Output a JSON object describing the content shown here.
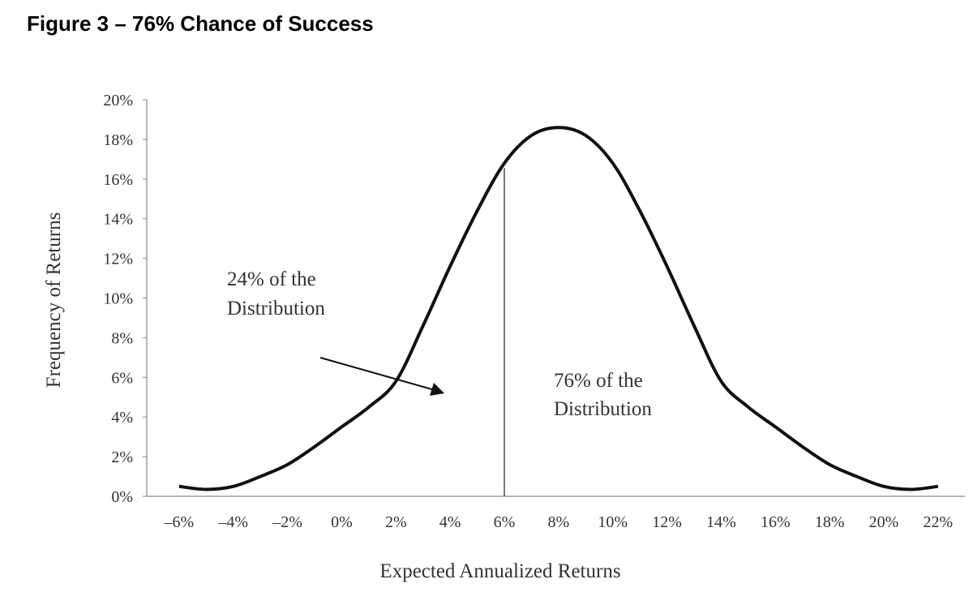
{
  "chart_data": {
    "type": "line",
    "title": "Figure 3 – 76% Chance of Success",
    "xlabel": "Expected Annualized Returns",
    "ylabel": "Frequency of Returns",
    "xlim": [
      -6,
      22
    ],
    "ylim": [
      0,
      20
    ],
    "grid": false,
    "x_ticks": [
      -6,
      -4,
      -2,
      0,
      2,
      4,
      6,
      8,
      10,
      12,
      14,
      16,
      18,
      20,
      22
    ],
    "x_tick_labels": [
      "–6%",
      "–4%",
      "–2%",
      "0%",
      "2%",
      "4%",
      "6%",
      "8%",
      "10%",
      "12%",
      "14%",
      "16%",
      "18%",
      "20%",
      "22%"
    ],
    "y_ticks": [
      0,
      2,
      4,
      6,
      8,
      10,
      12,
      14,
      16,
      18,
      20
    ],
    "y_tick_labels": [
      "0%",
      "2%",
      "4%",
      "6%",
      "8%",
      "10%",
      "12%",
      "14%",
      "16%",
      "18%",
      "20%"
    ],
    "series": [
      {
        "name": "Distribution",
        "x": [
          -6,
          -5,
          -4,
          -3,
          -2,
          -1,
          0,
          1,
          2,
          3,
          4,
          5,
          6,
          7,
          8,
          9,
          10,
          11,
          12,
          13,
          14,
          15,
          16,
          17,
          18,
          19,
          20,
          21,
          22
        ],
        "values": [
          0.5,
          0.35,
          0.5,
          1.0,
          1.6,
          2.5,
          3.5,
          4.5,
          5.8,
          8.6,
          11.6,
          14.4,
          16.8,
          18.2,
          18.6,
          18.2,
          16.8,
          14.4,
          11.6,
          8.6,
          5.8,
          4.5,
          3.5,
          2.5,
          1.6,
          1.0,
          0.5,
          0.35,
          0.5
        ]
      }
    ],
    "divider_x": 6,
    "annotations": {
      "left_line1": "24% of the",
      "left_line2": "Distribution",
      "right_line1": "76% of the",
      "right_line2": "Distribution"
    },
    "legend": "none"
  }
}
